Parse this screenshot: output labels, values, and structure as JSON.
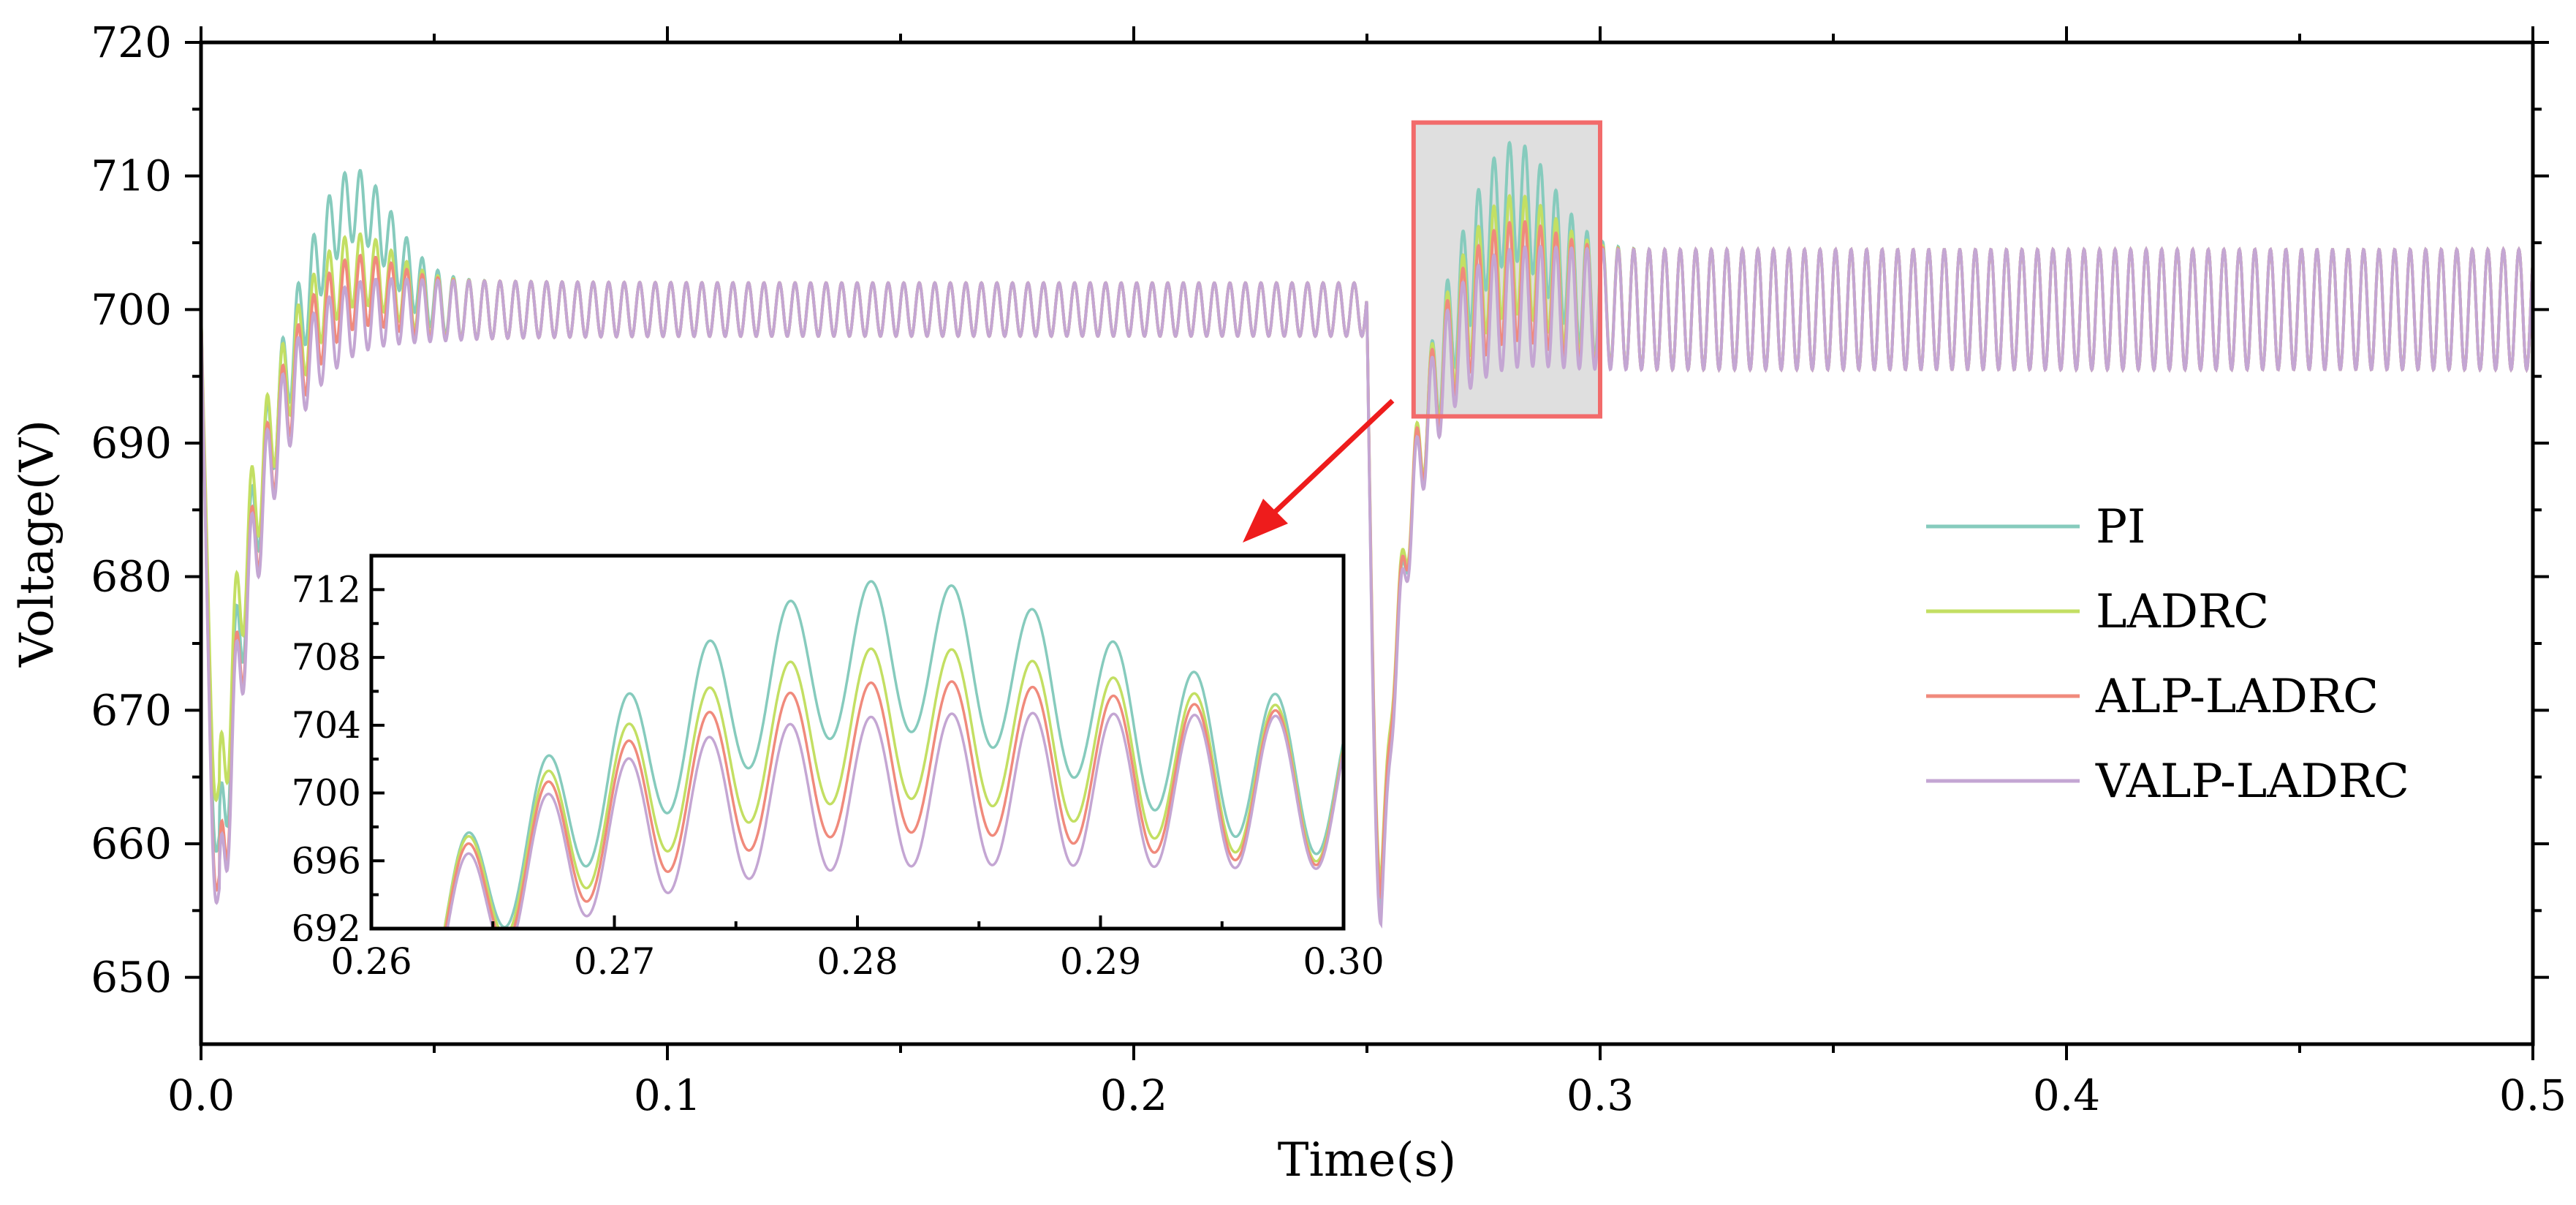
{
  "chart_data": {
    "type": "line",
    "title": "",
    "xlabel": "Time(s)",
    "ylabel": "Voltage(V)",
    "xlim": [
      0.0,
      0.5
    ],
    "ylim": [
      645,
      720
    ],
    "xticks": [
      0.0,
      0.1,
      0.2,
      0.3,
      0.4,
      0.5
    ],
    "xtick_labels": [
      "0.0",
      "0.1",
      "0.2",
      "0.3",
      "0.4",
      "0.5"
    ],
    "yticks": [
      650,
      660,
      670,
      680,
      690,
      700,
      710,
      720
    ],
    "ytick_labels": [
      "650",
      "660",
      "670",
      "680",
      "690",
      "700",
      "710",
      "720"
    ],
    "grid": false,
    "legend_position": "right",
    "colors": {
      "PI": "#86cbbd",
      "LADRC": "#c3df63",
      "ALP-LADRC": "#f08a7c",
      "VALP-LADRC": "#c4a6d3",
      "highlight_box": "#f26b6b",
      "highlight_fill": "#d9d9d9",
      "arrow": "#ee1c1c"
    },
    "series": [
      {
        "name": "PI",
        "start_dip": 658,
        "initial_peak": 711,
        "steady_center": 700,
        "steady_amplitude": 2.0,
        "load_step_dip": 655,
        "load_step_peak": 713,
        "final_center": 700,
        "final_amplitude": 4.5
      },
      {
        "name": "LADRC",
        "start_dip": 662,
        "initial_peak": 706,
        "steady_center": 700,
        "steady_amplitude": 2.0,
        "load_step_dip": 657,
        "load_step_peak": 709,
        "final_center": 700,
        "final_amplitude": 4.5
      },
      {
        "name": "ALP-LADRC",
        "start_dip": 655,
        "initial_peak": 704.5,
        "steady_center": 700,
        "steady_amplitude": 2.0,
        "load_step_dip": 656,
        "load_step_peak": 707,
        "final_center": 700,
        "final_amplitude": 4.5
      },
      {
        "name": "VALP-LADRC",
        "start_dip": 654,
        "initial_peak": 702.5,
        "steady_center": 700,
        "steady_amplitude": 2.0,
        "load_step_dip": 654,
        "load_step_peak": 705,
        "final_center": 700,
        "final_amplitude": 4.5
      }
    ],
    "oscillation_period_s": 0.00333,
    "load_step_time_s": 0.25,
    "zoom_region": {
      "x": [
        0.26,
        0.3
      ],
      "y": [
        692,
        714
      ]
    },
    "inset": {
      "xlim": [
        0.26,
        0.3
      ],
      "ylim": [
        692,
        714
      ],
      "xticks": [
        0.26,
        0.27,
        0.28,
        0.29,
        0.3
      ],
      "xtick_labels": [
        "0.26",
        "0.27",
        "0.28",
        "0.29",
        "0.30"
      ],
      "yticks": [
        692,
        696,
        700,
        704,
        708,
        712
      ],
      "ytick_labels": [
        "692",
        "696",
        "700",
        "704",
        "708",
        "712"
      ]
    }
  }
}
